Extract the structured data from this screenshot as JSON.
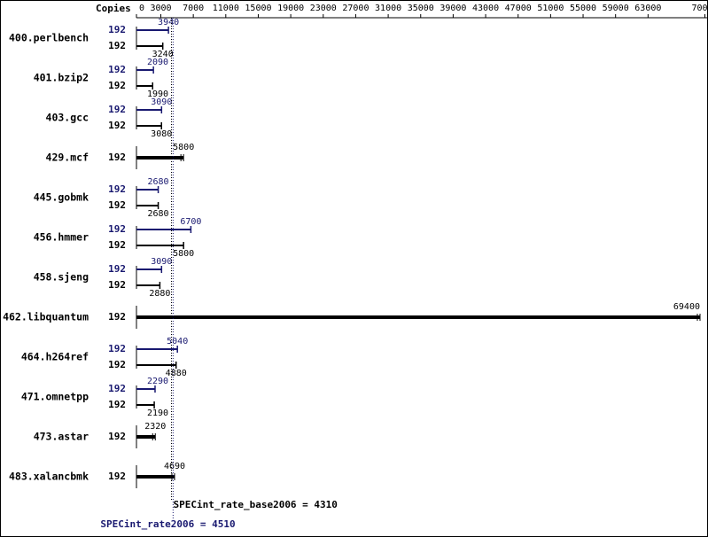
{
  "chart_data": {
    "type": "bar",
    "orientation": "horizontal",
    "copies_label": "Copies",
    "categories": [
      "400.perlbench",
      "401.bzip2",
      "403.gcc",
      "429.mcf",
      "445.gobmk",
      "456.hmmer",
      "458.sjeng",
      "462.libquantum",
      "464.h264ref",
      "471.omnetpp",
      "473.astar",
      "483.xalancbmk"
    ],
    "series": [
      {
        "color": "#191970",
        "copies": [
          192,
          192,
          192,
          null,
          192,
          192,
          192,
          null,
          192,
          192,
          null,
          null
        ],
        "values": [
          3940,
          2090,
          3090,
          null,
          2680,
          6700,
          3090,
          null,
          5040,
          2290,
          null,
          null
        ]
      },
      {
        "color": "#000000",
        "copies": [
          192,
          192,
          192,
          192,
          192,
          192,
          192,
          192,
          192,
          192,
          192,
          192
        ],
        "values": [
          3240,
          1990,
          3080,
          5800,
          2680,
          5800,
          2880,
          69400,
          4880,
          2190,
          2320,
          4690
        ]
      }
    ],
    "xlim": [
      0,
      70000
    ],
    "xticks": [
      0,
      3000,
      7000,
      11000,
      15000,
      19000,
      23000,
      27000,
      31000,
      35000,
      39000,
      43000,
      47000,
      51000,
      55000,
      59000,
      63000,
      70000
    ],
    "reference_lines": [
      {
        "label": "SPECint_rate_base2006 = 4310",
        "value": 4310,
        "color": "#000000"
      },
      {
        "label": "SPECint_rate2006 = 4510",
        "value": 4510,
        "color": "#191970"
      }
    ]
  }
}
